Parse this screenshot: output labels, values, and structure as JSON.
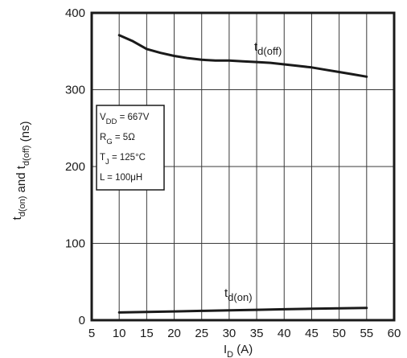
{
  "chart_data": {
    "type": "line",
    "title": "",
    "xlabel": {
      "main": "I",
      "sub": "D",
      "tail": " (A)"
    },
    "ylabel": {
      "parts": [
        {
          "t": "t",
          "sub": "d(on)"
        },
        {
          "t": " and t",
          "sub": "d(off)"
        },
        {
          "t": " (ns)",
          "sub": ""
        }
      ]
    },
    "xlim": [
      5,
      60
    ],
    "ylim": [
      0,
      400
    ],
    "xticks": [
      5,
      10,
      15,
      20,
      25,
      30,
      35,
      40,
      45,
      50,
      55,
      60
    ],
    "yticks": [
      0,
      100,
      200,
      300,
      400
    ],
    "grid": true,
    "series": [
      {
        "name": {
          "main": "t",
          "sub": "d(off)"
        },
        "x": [
          10,
          12.5,
          15,
          17.5,
          20,
          22.5,
          25,
          27.5,
          30,
          32.5,
          35,
          37.5,
          40,
          42.5,
          45,
          47.5,
          50,
          52.5,
          55
        ],
        "y": [
          371,
          363,
          353,
          348,
          344,
          341,
          339,
          338,
          338,
          337,
          336,
          335,
          333,
          331,
          329,
          326,
          323,
          320,
          317
        ]
      },
      {
        "name": {
          "main": "t",
          "sub": "d(on)"
        },
        "x": [
          10,
          15,
          20,
          25,
          30,
          35,
          40,
          45,
          50,
          55
        ],
        "y": [
          10,
          10.7,
          11.4,
          12.1,
          12.8,
          13.5,
          14.2,
          14.9,
          15.5,
          16
        ]
      }
    ],
    "annotations": {
      "conditions": [
        {
          "main": "V",
          "sub": "DD",
          "tail": " = 667V"
        },
        {
          "main": "R",
          "sub": "G",
          "tail": " = 5Ω"
        },
        {
          "main": "T",
          "sub": "J",
          "tail": " = 125°C"
        },
        {
          "main": "L = 100μH",
          "sub": "",
          "tail": ""
        }
      ]
    }
  }
}
